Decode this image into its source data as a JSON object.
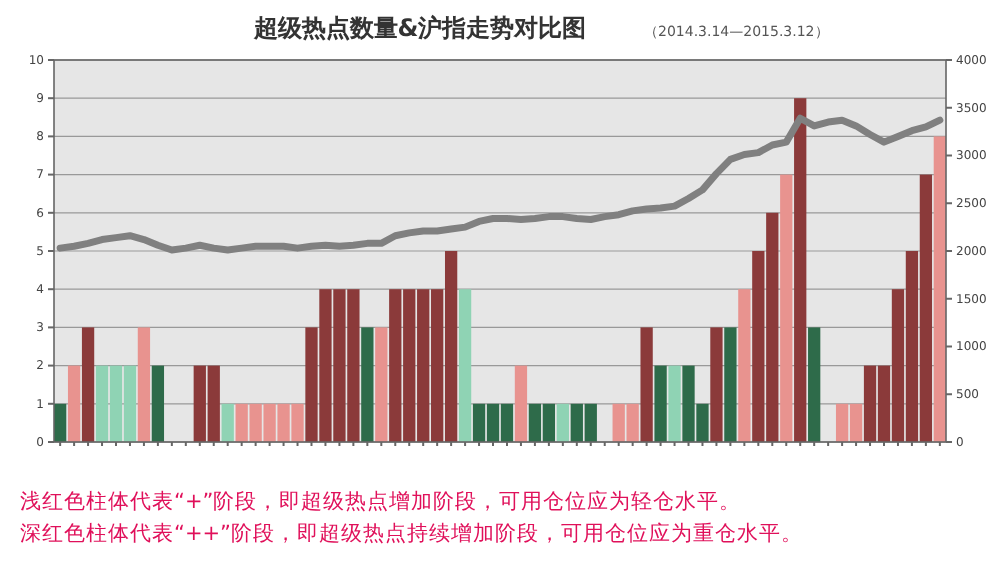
{
  "chart_data": {
    "type": "bar",
    "title": "超级热点数量&沪指走势对比图",
    "subtitle": "（2014.3.14—2015.3.12）",
    "categories": [
      null,
      null,
      null,
      null,
      null,
      null,
      null,
      null,
      null,
      null,
      null,
      null,
      null,
      null,
      null,
      null,
      null,
      null,
      null,
      null,
      null,
      null,
      null,
      null,
      null,
      null,
      null,
      null,
      null,
      null,
      null,
      null,
      null,
      null,
      null,
      null,
      null,
      null,
      null,
      null,
      null,
      null,
      null,
      null,
      null,
      null,
      null,
      null,
      null,
      null,
      null,
      null,
      null,
      null,
      null,
      null,
      null,
      null,
      null,
      null,
      null,
      null,
      null,
      null
    ],
    "series": [
      {
        "values": [
          1,
          2,
          3,
          2,
          2,
          2,
          3,
          2,
          0,
          0,
          2,
          2,
          1,
          1,
          1,
          1,
          1,
          1,
          3,
          4,
          4,
          4,
          3,
          3,
          4,
          4,
          4,
          4,
          5,
          4,
          1,
          1,
          1,
          2,
          1,
          1,
          1,
          1,
          1,
          0,
          1,
          1,
          3,
          2,
          2,
          2,
          1,
          3,
          3,
          4,
          5,
          6,
          7,
          9,
          3,
          0,
          1,
          1,
          2,
          2,
          4,
          5,
          7,
          8
        ],
        "colors": [
          "#2e6b4a",
          "#e8938f",
          "#8b3a3a",
          "#8fd3b4",
          "#8fd3b4",
          "#8fd3b4",
          "#e8938f",
          "#2e6b4a",
          "#2e6b4a",
          "#2e6b4a",
          "#8b3a3a",
          "#8b3a3a",
          "#8fd3b4",
          "#e8938f",
          "#e8938f",
          "#e8938f",
          "#e8938f",
          "#e8938f",
          "#8b3a3a",
          "#8b3a3a",
          "#8b3a3a",
          "#8b3a3a",
          "#2e6b4a",
          "#e8938f",
          "#8b3a3a",
          "#8b3a3a",
          "#8b3a3a",
          "#8b3a3a",
          "#8b3a3a",
          "#8fd3b4",
          "#2e6b4a",
          "#2e6b4a",
          "#2e6b4a",
          "#e8938f",
          "#2e6b4a",
          "#2e6b4a",
          "#8fd3b4",
          "#2e6b4a",
          "#2e6b4a",
          "#2e6b4a",
          "#e8938f",
          "#e8938f",
          "#8b3a3a",
          "#2e6b4a",
          "#8fd3b4",
          "#2e6b4a",
          "#2e6b4a",
          "#8b3a3a",
          "#2e6b4a",
          "#e8938f",
          "#8b3a3a",
          "#8b3a3a",
          "#e8938f",
          "#8b3a3a",
          "#2e6b4a",
          "#2e6b4a",
          "#e8938f",
          "#e8938f",
          "#8b3a3a",
          "#8b3a3a",
          "#8b3a3a",
          "#8b3a3a",
          "#8b3a3a",
          "#e8938f"
        ]
      },
      {
        "type": "line",
        "axis": "y2",
        "color": "#808080",
        "values": [
          2030,
          2050,
          2080,
          2120,
          2140,
          2160,
          2120,
          2060,
          2010,
          2030,
          2060,
          2030,
          2010,
          2030,
          2050,
          2050,
          2050,
          2030,
          2050,
          2060,
          2050,
          2060,
          2080,
          2080,
          2160,
          2190,
          2210,
          2210,
          2230,
          2250,
          2310,
          2340,
          2340,
          2330,
          2340,
          2360,
          2360,
          2340,
          2330,
          2360,
          2380,
          2420,
          2440,
          2450,
          2470,
          2550,
          2640,
          2810,
          2960,
          3010,
          3030,
          3110,
          3140,
          3390,
          3310,
          3350,
          3370,
          3310,
          3220,
          3140,
          3200,
          3260,
          3300,
          3370
        ]
      }
    ],
    "ylim": [
      0,
      10
    ],
    "yticks": [
      0,
      1,
      2,
      3,
      4,
      5,
      6,
      7,
      8,
      9,
      10
    ],
    "y2lim": [
      0,
      4000
    ],
    "y2ticks": [
      0,
      500,
      1000,
      1500,
      2000,
      2500,
      3000,
      3500,
      4000
    ],
    "grid": "y",
    "annotations": [
      "浅红色柱体代表“+”阶段，即超级热点增加阶段，可用仓位应为轻仓水平。",
      "深红色柱体代表“++”阶段，即超级热点持续增加阶段，可用仓位应为重仓水平。"
    ]
  }
}
